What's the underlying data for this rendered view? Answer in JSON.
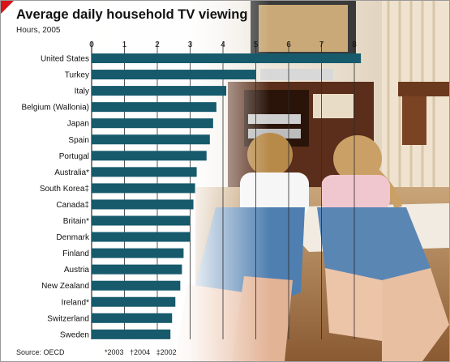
{
  "header": {
    "title": "Average daily household TV viewing",
    "subtitle": "Hours, 2005"
  },
  "footer": {
    "source": "Source: OECD",
    "notes": [
      "*2003",
      "†2004",
      "‡2002"
    ]
  },
  "colors": {
    "bar": "#165a6c",
    "accent_red": "#d8141a",
    "grid": "#2b2b2b"
  },
  "chart_data": {
    "type": "bar",
    "orientation": "horizontal",
    "title": "Average daily household TV viewing",
    "subtitle": "Hours, 2005",
    "xlim": [
      0,
      8
    ],
    "xticks": [
      0,
      1,
      2,
      3,
      4,
      5,
      6,
      7,
      8
    ],
    "grid": true,
    "categories": [
      "United States",
      "Turkey",
      "Italy",
      "Belgium (Wallonia)",
      "Japan",
      "Spain",
      "Portugal",
      "Australia*",
      "South Korea‡",
      "Canada‡",
      "Britain*",
      "Denmark",
      "Finland",
      "Austria",
      "New Zealand",
      "Ireland*",
      "Switzerland",
      "Sweden"
    ],
    "values": [
      8.2,
      5.0,
      4.1,
      3.8,
      3.7,
      3.6,
      3.5,
      3.2,
      3.15,
      3.1,
      3.0,
      3.0,
      2.8,
      2.75,
      2.7,
      2.55,
      2.45,
      2.4
    ]
  }
}
